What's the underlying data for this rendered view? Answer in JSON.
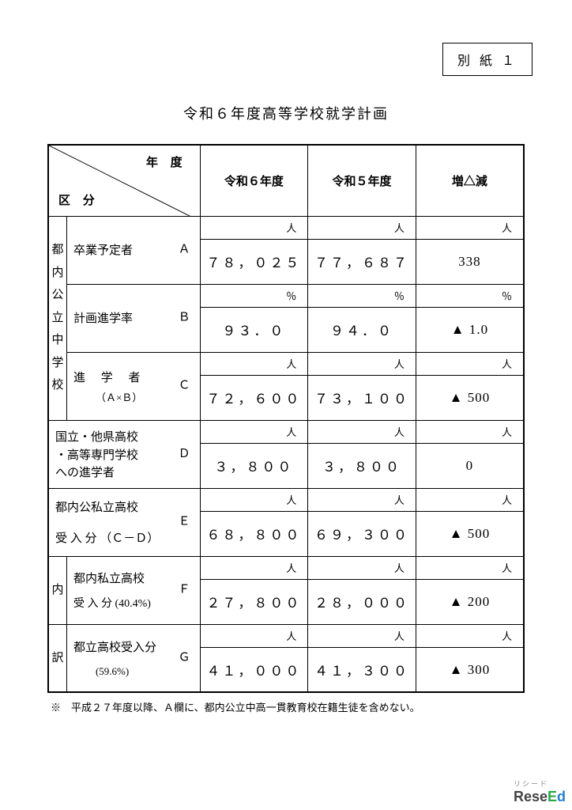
{
  "attachment_label": "別 紙 １",
  "title": "令和６年度高等学校就学計画",
  "header": {
    "year_label": "年 度",
    "category_label": "区 分",
    "cols": [
      "令和６年度",
      "令和５年度",
      "増△減"
    ]
  },
  "vert_label_1": "都内公立中学校",
  "vert_label_2a": "内",
  "vert_label_2b": "訳",
  "rows": [
    {
      "label_main": "卒業予定者",
      "code": "Ａ",
      "unit": "人",
      "v1": "７８，０２５",
      "v2": "７７，６８７",
      "diff": "338"
    },
    {
      "label_main": "計画進学率",
      "code": "Ｂ",
      "unit": "％",
      "v1": "９３．０",
      "v2": "９４．０",
      "diff": "▲ 1.0"
    },
    {
      "label_main": "進 学 者",
      "label_sub": "（Ａ×Ｂ）",
      "code": "Ｃ",
      "unit": "人",
      "v1": "７２，６００",
      "v2": "７３，１００",
      "diff": "▲ 500"
    },
    {
      "label_main": "国立・他県高校<br>・高等専門学校<br>への進学者",
      "code": "Ｄ",
      "unit": "人",
      "v1": "３，８００",
      "v2": "３，８００",
      "diff": "0"
    },
    {
      "label_main": "都内公私立高校",
      "label_sub2": "受 入 分 （Ｃ－Ｄ）",
      "code": "Ｅ",
      "unit": "人",
      "v1": "６８，８００",
      "v2": "６９，３００",
      "diff": "▲ 500"
    },
    {
      "label_main": "都内私立高校",
      "label_sub": "受 入 分 (40.4%)",
      "code": "Ｆ",
      "unit": "人",
      "v1": "２７，８００",
      "v2": "２８，０００",
      "diff": "▲ 200"
    },
    {
      "label_main": "都立高校受入分",
      "label_sub": "(59.6%)",
      "code": "Ｇ",
      "unit": "人",
      "v1": "４１，０００",
      "v2": "４１，３００",
      "diff": "▲ 300"
    }
  ],
  "footnote": "※　平成２７年度以降、Ａ欄に、都内公立中高一貫教育校在籍生徒を含めない。",
  "logo": {
    "text1": "Rese",
    "text2": "E",
    "text3": "d",
    "sub": "リシード"
  }
}
